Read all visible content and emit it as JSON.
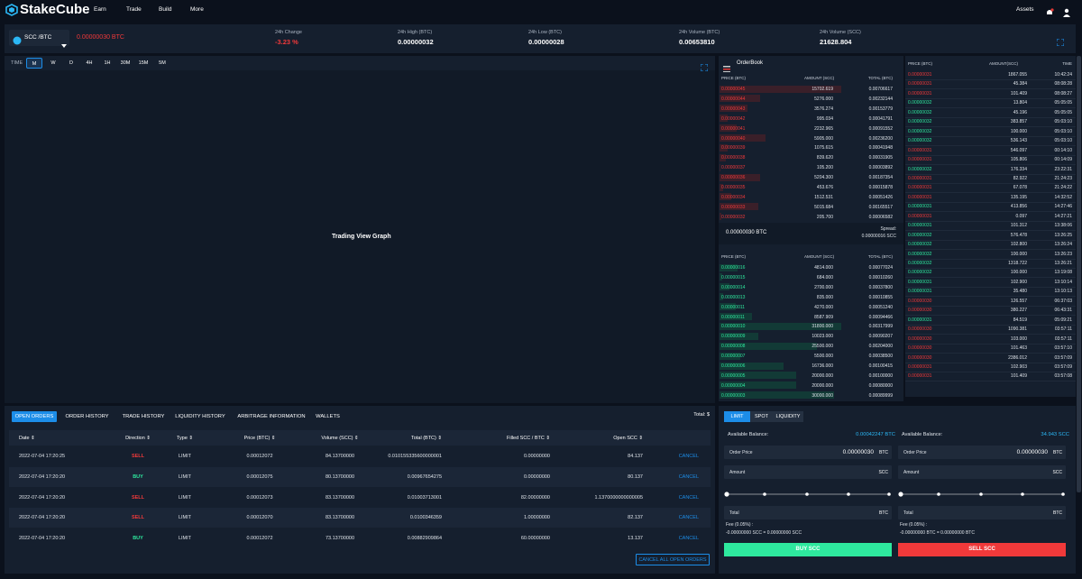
{
  "nav": {
    "brand": "StakeCube",
    "menu": [
      "Earn",
      "Trade",
      "Build",
      "More"
    ],
    "assets": "Assets"
  },
  "ticker": {
    "pair": "SCC /BTC",
    "price": "0.00000030 BTC",
    "stats": [
      {
        "label": "24h Change",
        "value": "-3.23 %"
      },
      {
        "label": "24h High (BTC)",
        "value": "0.00000032"
      },
      {
        "label": "24h Low (BTC)",
        "value": "0.00000028"
      },
      {
        "label": "24h Volume (BTC)",
        "value": "0.00653810"
      },
      {
        "label": "24h Volume (SCC)",
        "value": "21628.804"
      }
    ]
  },
  "chart": {
    "time_label": "TIME",
    "intervals": [
      "M",
      "W",
      "D",
      "4H",
      "1H",
      "30M",
      "15M",
      "5M"
    ],
    "placeholder": "Trading View Graph"
  },
  "orderbook": {
    "title": "OrderBook",
    "headers": [
      "PRICE (BTC)",
      "AMOUNT (SCC)",
      "TOTAL (BTC)"
    ],
    "asks": [
      [
        "0.00000045",
        "15702.619",
        "0.00706617"
      ],
      [
        "0.00000044",
        "5276.000",
        "0.00232144"
      ],
      [
        "0.00000043",
        "3576.274",
        "0.00153779"
      ],
      [
        "0.00000042",
        "995.034",
        "0.00041791"
      ],
      [
        "0.00000041",
        "2232.965",
        "0.00091552"
      ],
      [
        "0.00000040",
        "5905.000",
        "0.00236200"
      ],
      [
        "0.00000039",
        "1075.615",
        "0.00041948"
      ],
      [
        "0.00000038",
        "839.620",
        "0.00031905"
      ],
      [
        "0.00000037",
        "105.200",
        "0.00003892"
      ],
      [
        "0.00000036",
        "5204.300",
        "0.00187354"
      ],
      [
        "0.00000035",
        "453.676",
        "0.00015878"
      ],
      [
        "0.00000034",
        "1512.531",
        "0.00051426"
      ],
      [
        "0.00000033",
        "5015.684",
        "0.00165517"
      ],
      [
        "0.00000032",
        "205.700",
        "0.00006582"
      ]
    ],
    "mid_price": "0.00000030 BTC",
    "spread_label": "Spread:",
    "spread_value": "0.00000016 SCC",
    "bids": [
      [
        "0.00000016",
        "4814.000",
        "0.00077024"
      ],
      [
        "0.00000015",
        "684.000",
        "0.00010260"
      ],
      [
        "0.00000014",
        "2700.000",
        "0.00037800"
      ],
      [
        "0.00000013",
        "835.000",
        "0.00010855"
      ],
      [
        "0.00000011",
        "4270.000",
        "0.00051240"
      ],
      [
        "0.00000011",
        "8587.909",
        "0.00094466"
      ],
      [
        "0.00000010",
        "31800.000",
        "0.00317999"
      ],
      [
        "0.00000009",
        "10023.000",
        "0.00090207"
      ],
      [
        "0.00000008",
        "25500.000",
        "0.00204000"
      ],
      [
        "0.00000007",
        "5500.000",
        "0.00038500"
      ],
      [
        "0.00000006",
        "16736.000",
        "0.00100415"
      ],
      [
        "0.00000005",
        "20000.000",
        "0.00100000"
      ],
      [
        "0.00000004",
        "20000.000",
        "0.00080000"
      ],
      [
        "0.00000003",
        "30000.000",
        "0.00089999"
      ]
    ]
  },
  "trades": {
    "headers": [
      "PRICE (BTC)",
      "AMOUNT(SCC)",
      "TIME"
    ],
    "sell_color": "#f0393a",
    "buy_color": "#2ee89e",
    "rows": [
      [
        "0.00000031",
        "1867.055",
        "10:42:24",
        "sell"
      ],
      [
        "0.00000031",
        "45.384",
        "08:08:28",
        "sell"
      ],
      [
        "0.00000031",
        "101.409",
        "08:08:27",
        "sell"
      ],
      [
        "0.00000032",
        "13.804",
        "05:05:05",
        "buy"
      ],
      [
        "0.00000032",
        "45.196",
        "05:05:05",
        "buy"
      ],
      [
        "0.00000032",
        "383.857",
        "05:03:10",
        "buy"
      ],
      [
        "0.00000032",
        "100.000",
        "05:03:10",
        "buy"
      ],
      [
        "0.00000032",
        "536.143",
        "05:03:10",
        "buy"
      ],
      [
        "0.00000031",
        "546.097",
        "00:14:10",
        "sell"
      ],
      [
        "0.00000031",
        "105.806",
        "00:14:09",
        "sell"
      ],
      [
        "0.00000032",
        "176.334",
        "23:22:31",
        "buy"
      ],
      [
        "0.00000031",
        "82.922",
        "21:24:23",
        "sell"
      ],
      [
        "0.00000031",
        "67.078",
        "21:24:22",
        "sell"
      ],
      [
        "0.00000031",
        "135.195",
        "14:32:52",
        "sell"
      ],
      [
        "0.00000031",
        "413.856",
        "14:27:46",
        "buy"
      ],
      [
        "0.00000031",
        "0.097",
        "14:27:21",
        "sell"
      ],
      [
        "0.00000031",
        "101.312",
        "13:38:06",
        "buy"
      ],
      [
        "0.00000032",
        "576.478",
        "13:26:25",
        "buy"
      ],
      [
        "0.00000032",
        "102.800",
        "13:26:24",
        "buy"
      ],
      [
        "0.00000032",
        "100.000",
        "13:26:23",
        "buy"
      ],
      [
        "0.00000032",
        "1318.722",
        "13:26:21",
        "buy"
      ],
      [
        "0.00000032",
        "100.000",
        "13:19:08",
        "buy"
      ],
      [
        "0.00000031",
        "102.900",
        "13:10:14",
        "buy"
      ],
      [
        "0.00000031",
        "35.480",
        "13:10:13",
        "buy"
      ],
      [
        "0.00000030",
        "126.557",
        "06:37:03",
        "sell"
      ],
      [
        "0.00000030",
        "380.227",
        "06:43:31",
        "sell"
      ],
      [
        "0.00000031",
        "84.519",
        "05:09:21",
        "buy"
      ],
      [
        "0.00000030",
        "1090.381",
        "03:57:11",
        "sell"
      ],
      [
        "0.00000030",
        "103.000",
        "03:57:11",
        "sell"
      ],
      [
        "0.00000030",
        "101.463",
        "03:57:10",
        "sell"
      ],
      [
        "0.00000030",
        "2386.012",
        "03:57:09",
        "sell"
      ],
      [
        "0.00000031",
        "102.903",
        "03:57:09",
        "sell"
      ],
      [
        "0.00000031",
        "101.409",
        "03:57:08",
        "sell"
      ]
    ]
  },
  "orders": {
    "tabs": [
      "OPEN ORDERS",
      "ORDER HISTORY",
      "TRADE HISTORY",
      "LIQUIDITY HISTORY",
      "ARBITRAGE INFORMATION",
      "WALLETS"
    ],
    "total": "Total: $",
    "headers": [
      "Date",
      "Direction",
      "Type",
      "Price (BTC)",
      "Volume (SCC)",
      "Total (BTC)",
      "Filled SCC / BTC",
      "Open SCC"
    ],
    "rows": [
      [
        "2022-07-04 17:20:25",
        "SELL",
        "LIMIT",
        "0.00012072",
        "84.13700000",
        "0.010155335600000001",
        "0.00000000",
        "84.137",
        "CANCEL"
      ],
      [
        "2022-07-04 17:20:20",
        "BUY",
        "LIMIT",
        "0.00012075",
        "80.13700000",
        "0.00967654275",
        "0.00000000",
        "80.137",
        "CANCEL"
      ],
      [
        "2022-07-04 17:20:20",
        "SELL",
        "LIMIT",
        "0.00012073",
        "83.13700000",
        "0.01003713001",
        "82.00000000",
        "1.1370000000000005",
        "CANCEL"
      ],
      [
        "2022-07-04 17:20:20",
        "SELL",
        "LIMIT",
        "0.00012070",
        "83.13700000",
        "0.0100346359",
        "1.00000000",
        "82.137",
        "CANCEL"
      ],
      [
        "2022-07-04 17:20:20",
        "BUY",
        "LIMIT",
        "0.00012072",
        "73.13700000",
        "0.00882909864",
        "60.00000000",
        "13.137",
        "CANCEL"
      ]
    ],
    "cancel_all": "CANCEL ALL OPEN ORDERS"
  },
  "trade_form": {
    "tabs": [
      "LIMIT",
      "SPOT",
      "LIQUIDITY"
    ],
    "buy": {
      "balance_label": "Available Balance:",
      "balance": "0.00042247 BTC",
      "price_label": "Order Price",
      "price": "0.00000030",
      "price_unit": "BTC",
      "amount_label": "Amount",
      "amount_unit": "SCC",
      "total_label": "Total",
      "total_unit": "BTC",
      "fee_label": "Fee (0.05%) :",
      "fee": "-0.00000000 SCC = 0.00000000 SCC",
      "button": "BUY SCC"
    },
    "sell": {
      "balance_label": "Available Balance:",
      "balance": "34.943 SCC",
      "price_label": "Order Price",
      "price": "0.00000030",
      "price_unit": "BTC",
      "amount_label": "Amount",
      "amount_unit": "SCC",
      "total_label": "Total",
      "total_unit": "BTC",
      "fee_label": "Fee (0.05%) :",
      "fee": "-0.00000000 BTC = 0.00000000 BTC",
      "button": "SELL SCC"
    }
  }
}
